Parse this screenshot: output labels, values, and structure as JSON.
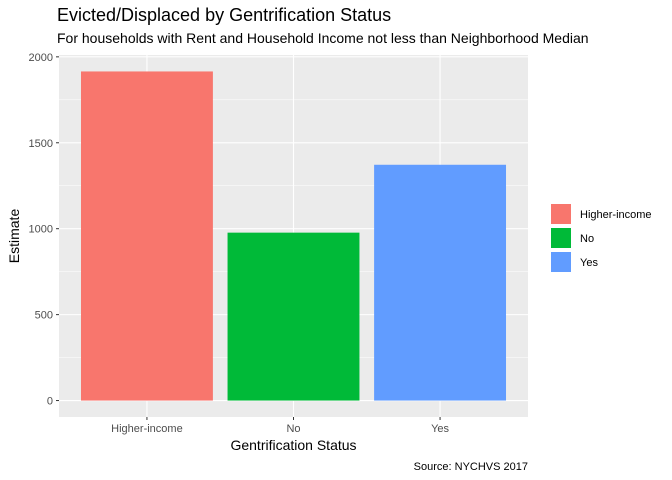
{
  "chart_data": {
    "type": "bar",
    "title": "Evicted/Displaced by Gentrification Status",
    "subtitle": "For households with Rent and Household Income not less than Neighborhood Median",
    "xlabel": "Gentrification Status",
    "ylabel": "Estimate",
    "caption": "Source: NYCHVS 2017",
    "categories": [
      "Higher-income",
      "No",
      "Yes"
    ],
    "values": [
      1915,
      977,
      1372
    ],
    "ylim": [
      0,
      2000
    ],
    "yticks": [
      0,
      500,
      1000,
      1500,
      2000
    ],
    "colors": [
      "#F8766D",
      "#00BA38",
      "#619CFF"
    ],
    "grid": true,
    "panel_background": "#EBEBEB",
    "legend": {
      "position": "right",
      "entries": [
        "Higher-income",
        "No",
        "Yes"
      ]
    }
  }
}
